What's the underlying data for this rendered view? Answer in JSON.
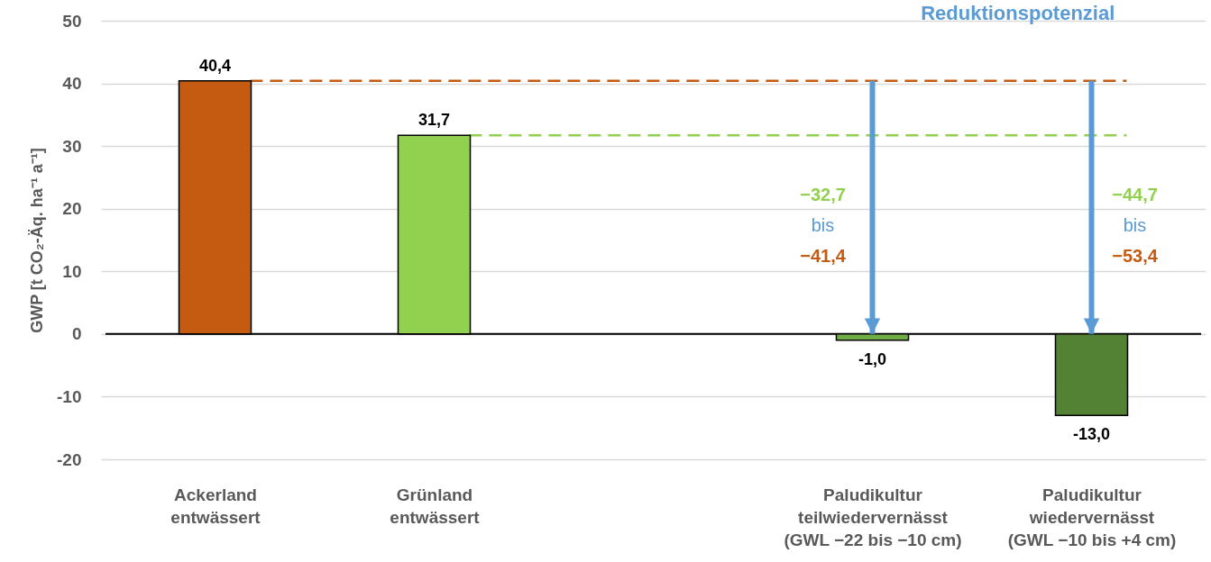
{
  "chart_data": {
    "type": "bar",
    "ylabel": "GWP [t CO₂-Äq. ha⁻¹ a⁻¹]",
    "categories": [
      "Ackerland\nentwässert",
      "Grünland\nentwässert",
      null,
      "Paludikultur\nteilwiedervernässt\n(GWL −22 bis −10 cm)",
      "Paludikultur\nwiedervernässt\n(GWL −10 bis +4 cm)"
    ],
    "values": [
      40.4,
      31.7,
      null,
      -1.0,
      -13.0
    ],
    "colors": [
      "#c55a11",
      "#92d050",
      "#92d050",
      "#70ad47",
      "#548235"
    ],
    "value_labels": [
      "40,4",
      "31,7",
      null,
      "-1,0",
      "-13,0"
    ],
    "ylim": [
      -20,
      50
    ],
    "yticks": [
      -20,
      -10,
      0,
      10,
      20,
      30,
      40,
      50
    ],
    "grid": "y",
    "ref_lines": [
      {
        "axis": "y",
        "value": 40.4,
        "color": "#c55a11",
        "line_style": "dashed"
      },
      {
        "axis": "y",
        "value": 31.7,
        "color": "#92d050",
        "line_style": "dashed"
      }
    ],
    "annotations": [
      "Reduktionspotenzial",
      "−32,7",
      "bis",
      "−41,4",
      "−44,7",
      "bis",
      "−53,4"
    ]
  }
}
